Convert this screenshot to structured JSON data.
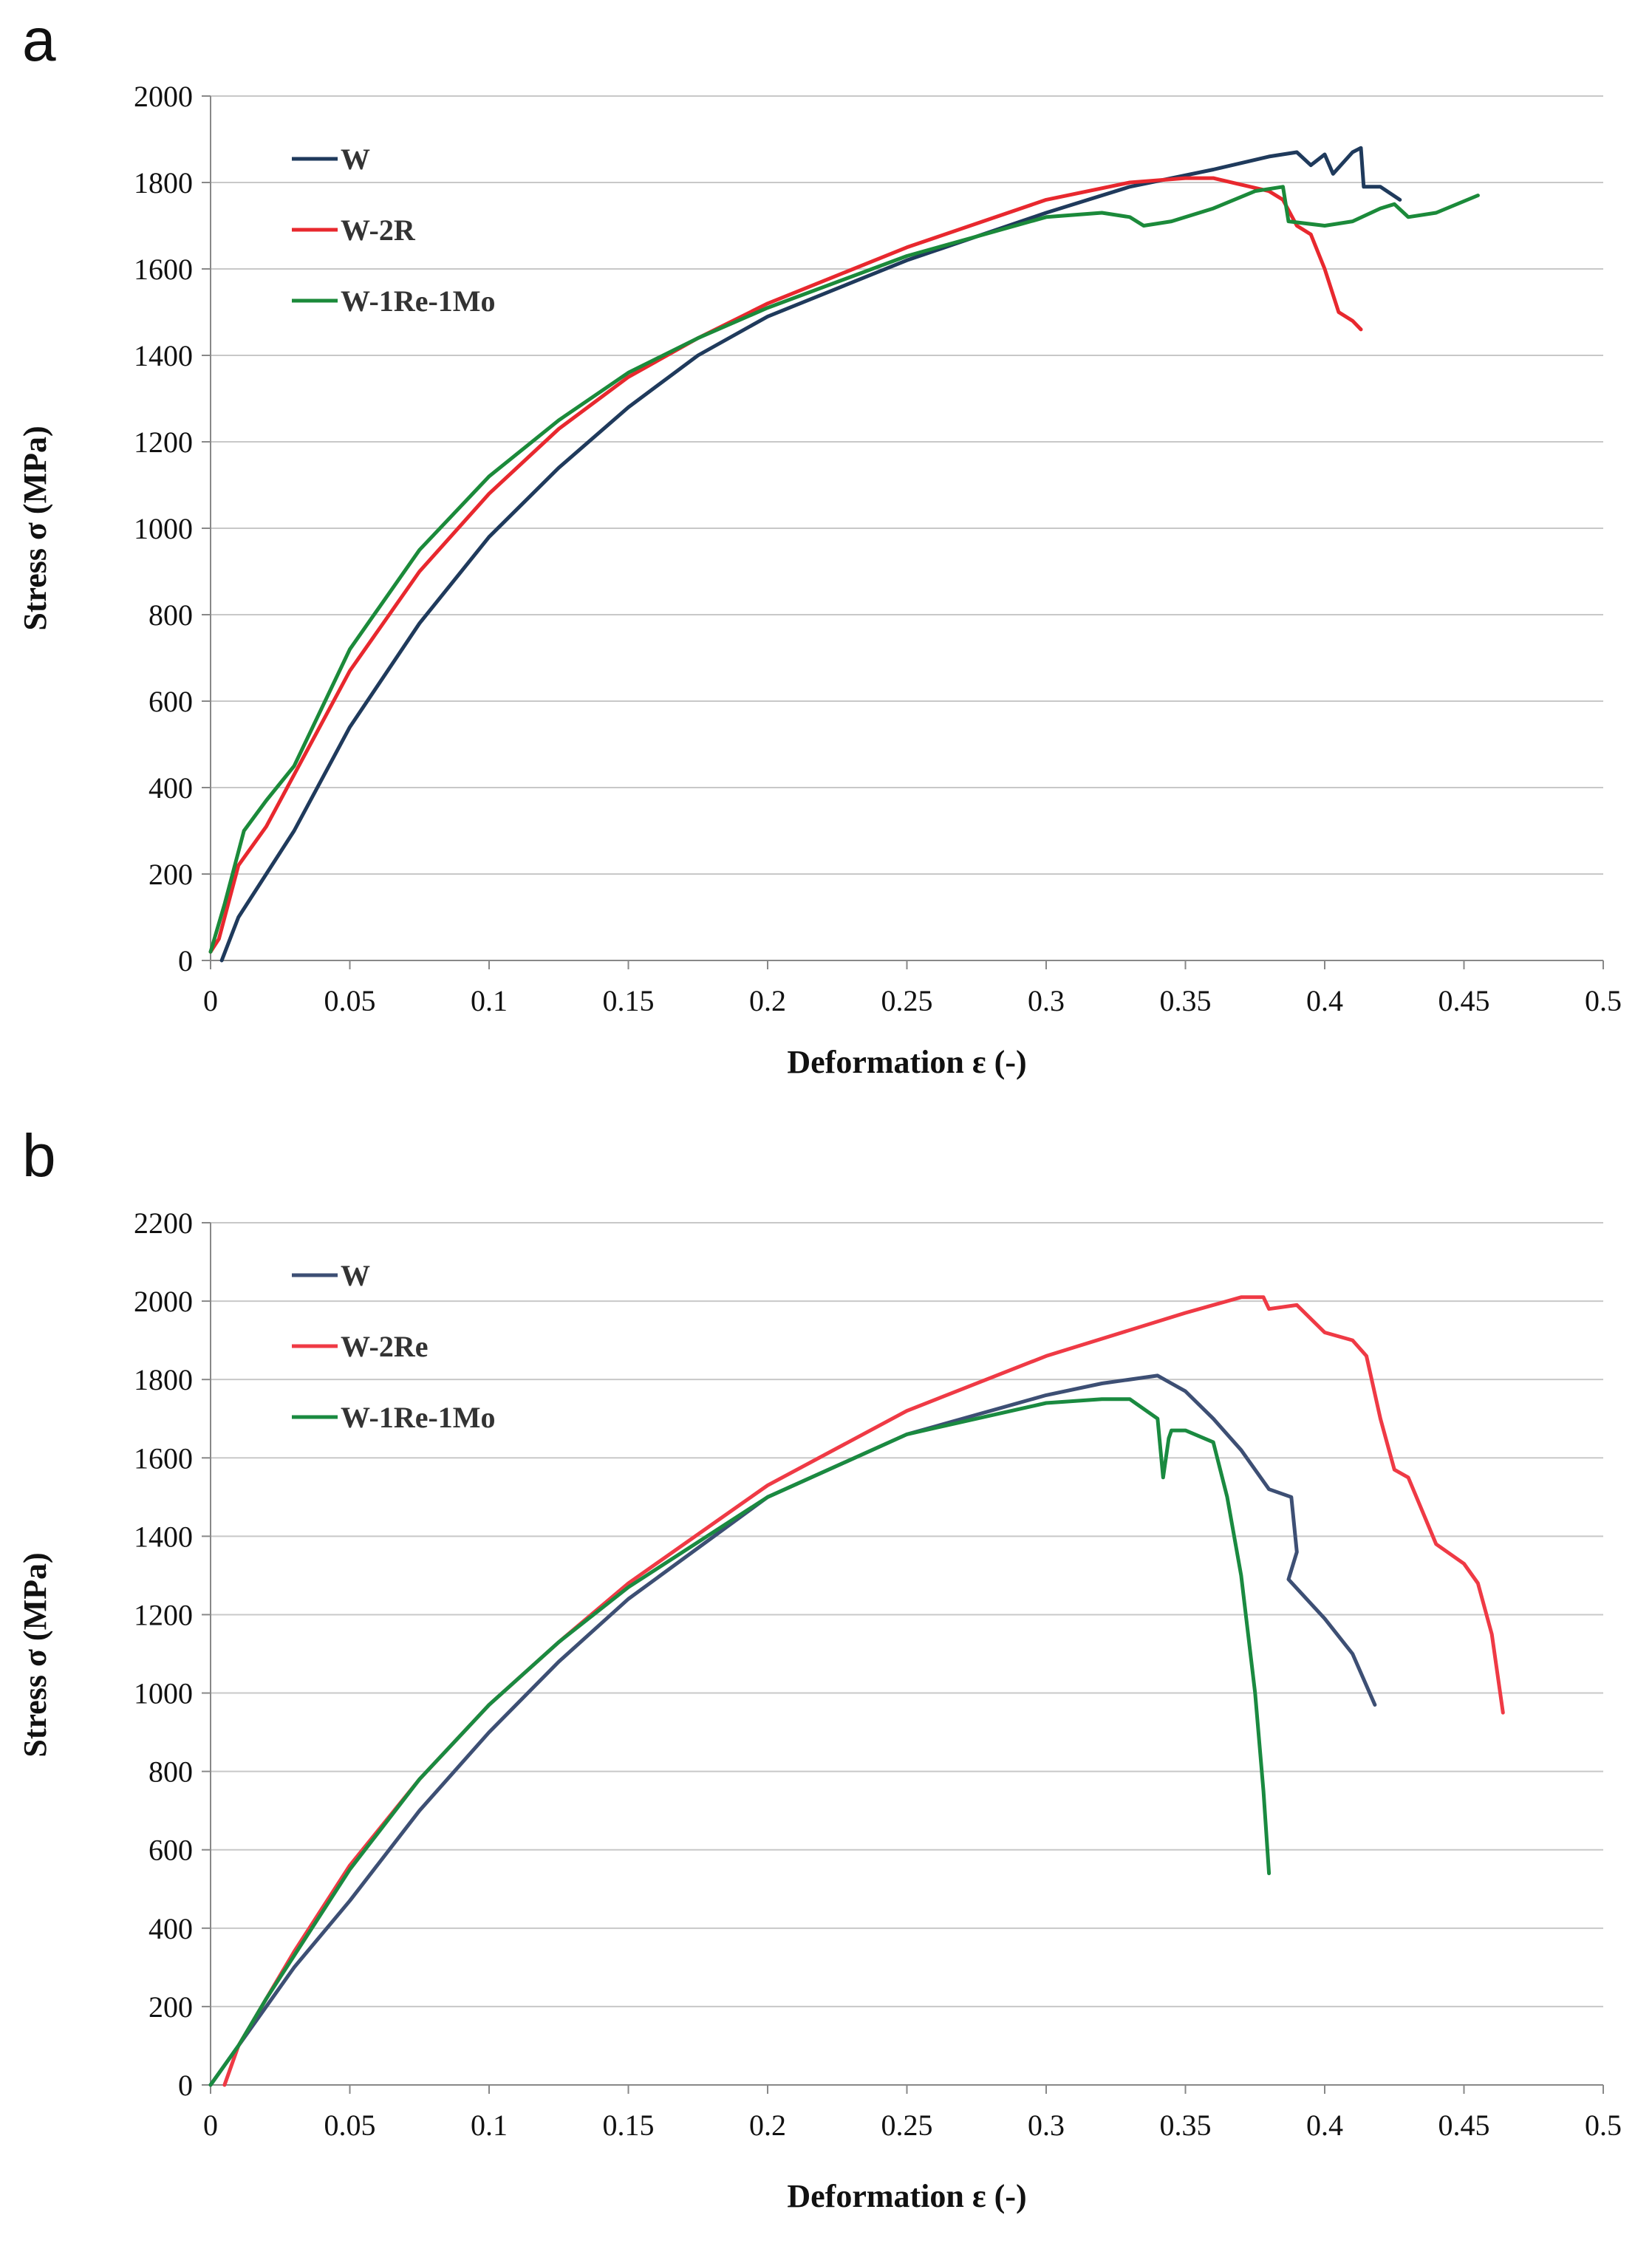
{
  "chart_data": [
    {
      "panel": "a",
      "type": "line",
      "title": "",
      "xlabel": "Deformation ε (-)",
      "ylabel": "Stress σ (MPa)",
      "xlim": [
        0,
        0.5
      ],
      "ylim": [
        0,
        2000
      ],
      "xticks": [
        "0",
        "0.05",
        "0.1",
        "0.15",
        "0.2",
        "0.25",
        "0.3",
        "0.35",
        "0.4",
        "0.45",
        "0.5"
      ],
      "yticks": [
        "0",
        "200",
        "400",
        "600",
        "800",
        "1000",
        "1200",
        "1400",
        "1600",
        "1800",
        "2000"
      ],
      "grid": true,
      "legend_position": "top-left",
      "series": [
        {
          "name": "W",
          "color": "#1f3a5c",
          "x": [
            0.004,
            0.01,
            0.02,
            0.03,
            0.05,
            0.075,
            0.1,
            0.125,
            0.15,
            0.175,
            0.2,
            0.25,
            0.3,
            0.33,
            0.36,
            0.38,
            0.39,
            0.395,
            0.4,
            0.403,
            0.41,
            0.413,
            0.414,
            0.42,
            0.427
          ],
          "y": [
            0,
            100,
            200,
            300,
            540,
            780,
            980,
            1140,
            1280,
            1400,
            1490,
            1620,
            1730,
            1790,
            1830,
            1860,
            1870,
            1840,
            1865,
            1820,
            1870,
            1880,
            1790,
            1790,
            1760
          ]
        },
        {
          "name": "W-2R",
          "color": "#e8282e",
          "x": [
            0.0,
            0.003,
            0.01,
            0.02,
            0.03,
            0.05,
            0.075,
            0.1,
            0.125,
            0.15,
            0.175,
            0.2,
            0.25,
            0.3,
            0.33,
            0.35,
            0.36,
            0.37,
            0.38,
            0.385,
            0.39,
            0.395,
            0.4,
            0.405,
            0.41,
            0.413
          ],
          "y": [
            20,
            50,
            220,
            310,
            430,
            670,
            900,
            1080,
            1230,
            1350,
            1440,
            1520,
            1650,
            1760,
            1800,
            1810,
            1810,
            1795,
            1780,
            1760,
            1700,
            1680,
            1600,
            1500,
            1480,
            1460
          ]
        },
        {
          "name": "W-1Re-1Mo",
          "color": "#1b8a3a",
          "x": [
            0.0,
            0.005,
            0.012,
            0.02,
            0.03,
            0.05,
            0.075,
            0.1,
            0.125,
            0.15,
            0.175,
            0.2,
            0.25,
            0.3,
            0.32,
            0.33,
            0.335,
            0.345,
            0.36,
            0.375,
            0.385,
            0.387,
            0.4,
            0.41,
            0.42,
            0.425,
            0.43,
            0.44,
            0.455
          ],
          "y": [
            20,
            130,
            300,
            370,
            450,
            720,
            950,
            1120,
            1250,
            1360,
            1440,
            1510,
            1630,
            1720,
            1730,
            1720,
            1700,
            1710,
            1740,
            1780,
            1790,
            1710,
            1700,
            1710,
            1740,
            1750,
            1720,
            1730,
            1770
          ]
        }
      ]
    },
    {
      "panel": "b",
      "type": "line",
      "title": "",
      "xlabel": "Deformation ε (-)",
      "ylabel": "Stress σ (MPa)",
      "xlim": [
        0,
        0.5
      ],
      "ylim": [
        0,
        2200
      ],
      "xticks": [
        "0",
        "0.05",
        "0.1",
        "0.15",
        "0.2",
        "0.25",
        "0.3",
        "0.35",
        "0.4",
        "0.45",
        "0.5"
      ],
      "yticks": [
        "0",
        "200",
        "400",
        "600",
        "800",
        "1000",
        "1200",
        "1400",
        "1600",
        "1800",
        "2000",
        "2200"
      ],
      "grid": true,
      "legend_position": "top-left",
      "series": [
        {
          "name": "W",
          "color": "#3d4f74",
          "x": [
            0.0,
            0.01,
            0.02,
            0.03,
            0.05,
            0.075,
            0.1,
            0.125,
            0.15,
            0.2,
            0.25,
            0.3,
            0.32,
            0.34,
            0.345,
            0.35,
            0.36,
            0.37,
            0.38,
            0.388,
            0.39,
            0.387,
            0.4,
            0.41,
            0.418
          ],
          "y": [
            0,
            100,
            200,
            300,
            470,
            700,
            900,
            1080,
            1240,
            1500,
            1660,
            1760,
            1790,
            1810,
            1790,
            1770,
            1700,
            1620,
            1520,
            1500,
            1360,
            1290,
            1190,
            1100,
            970
          ]
        },
        {
          "name": "W-2Re",
          "color": "#ef3a45",
          "x": [
            0.005,
            0.01,
            0.02,
            0.03,
            0.05,
            0.075,
            0.1,
            0.125,
            0.15,
            0.2,
            0.25,
            0.3,
            0.35,
            0.37,
            0.378,
            0.38,
            0.39,
            0.4,
            0.41,
            0.415,
            0.42,
            0.425,
            0.43,
            0.44,
            0.45,
            0.455,
            0.46,
            0.464
          ],
          "y": [
            0,
            100,
            220,
            340,
            560,
            780,
            970,
            1130,
            1280,
            1530,
            1720,
            1860,
            1970,
            2010,
            2010,
            1980,
            1990,
            1920,
            1900,
            1860,
            1700,
            1570,
            1550,
            1380,
            1330,
            1280,
            1150,
            950
          ]
        },
        {
          "name": "W-1Re-1Mo",
          "color": "#1a8a40",
          "x": [
            0.0,
            0.01,
            0.02,
            0.03,
            0.05,
            0.075,
            0.1,
            0.125,
            0.15,
            0.2,
            0.25,
            0.3,
            0.32,
            0.33,
            0.34,
            0.342,
            0.344,
            0.345,
            0.35,
            0.36,
            0.365,
            0.37,
            0.375,
            0.378,
            0.38
          ],
          "y": [
            0,
            100,
            220,
            330,
            550,
            780,
            970,
            1130,
            1270,
            1500,
            1660,
            1740,
            1750,
            1750,
            1700,
            1550,
            1650,
            1670,
            1670,
            1640,
            1500,
            1300,
            1000,
            750,
            540
          ]
        }
      ]
    }
  ],
  "panels": {
    "a": {
      "letter": "a"
    },
    "b": {
      "letter": "b"
    }
  }
}
